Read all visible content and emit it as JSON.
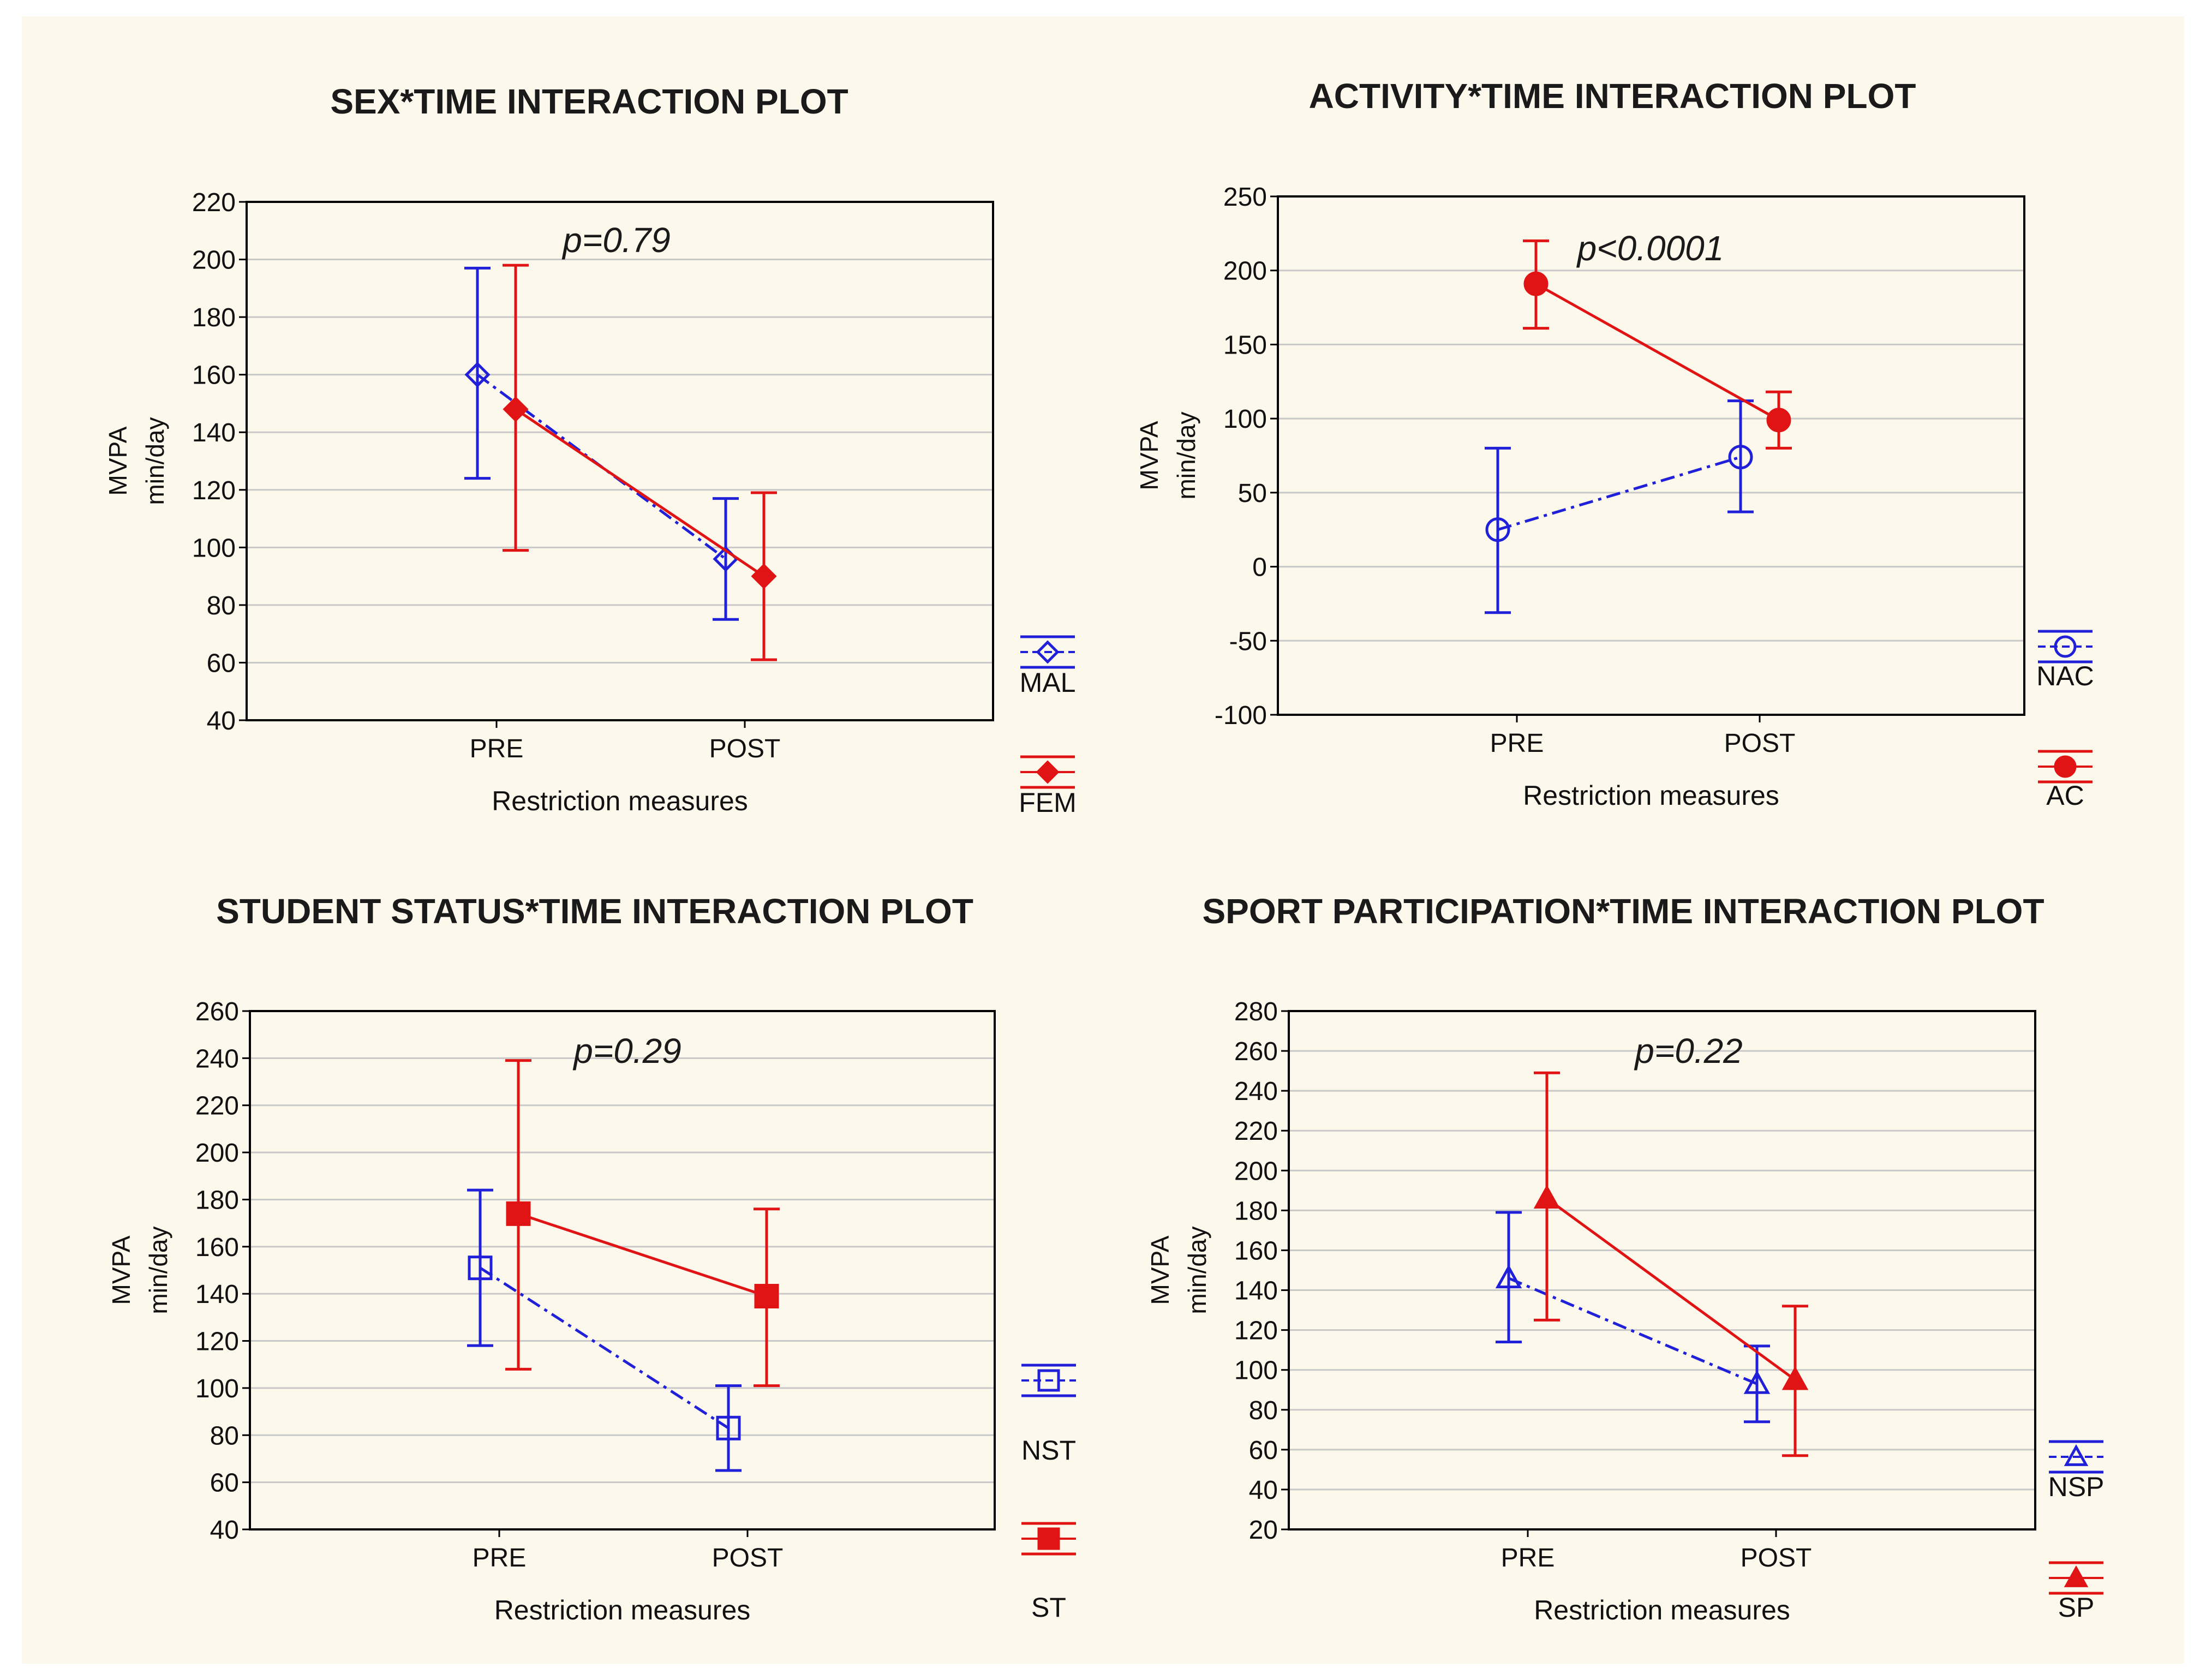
{
  "chart_data": [
    {
      "type": "line",
      "title": "SEX*TIME INTERACTION PLOT",
      "annotation": "p=0.79",
      "xlabel": "Restriction measures",
      "ylabel_lines": [
        "MVPA",
        "min/day"
      ],
      "categories": [
        "PRE",
        "POST"
      ],
      "ylim": [
        40,
        220
      ],
      "yticks": [
        40,
        60,
        80,
        100,
        120,
        140,
        160,
        180,
        200,
        220
      ],
      "grid": true,
      "legend_position": "right",
      "series": [
        {
          "name": "MAL",
          "color": "#2020d8",
          "marker": "diamond-open",
          "dash": true,
          "values": [
            160,
            96
          ],
          "err_low": [
            124,
            75
          ],
          "err_high": [
            197,
            117
          ]
        },
        {
          "name": "FEM",
          "color": "#e01414",
          "marker": "diamond-filled",
          "dash": false,
          "values": [
            148,
            90
          ],
          "err_low": [
            99,
            61
          ],
          "err_high": [
            198,
            119
          ]
        }
      ]
    },
    {
      "type": "line",
      "title": "ACTIVITY*TIME INTERACTION PLOT",
      "annotation": "p<0.0001",
      "xlabel": "Restriction measures",
      "ylabel_lines": [
        "MVPA",
        "min/day"
      ],
      "categories": [
        "PRE",
        "POST"
      ],
      "ylim": [
        -100,
        250
      ],
      "yticks": [
        -100,
        -50,
        0,
        50,
        100,
        150,
        200,
        250
      ],
      "grid": true,
      "legend_position": "right",
      "series": [
        {
          "name": "NAC",
          "color": "#2020d8",
          "marker": "circle-open",
          "dash": true,
          "values": [
            25,
            74
          ],
          "err_low": [
            -31,
            37
          ],
          "err_high": [
            80,
            112
          ]
        },
        {
          "name": "AC",
          "color": "#e01414",
          "marker": "circle-filled",
          "dash": false,
          "values": [
            191,
            99
          ],
          "err_low": [
            161,
            80
          ],
          "err_high": [
            220,
            118
          ]
        }
      ]
    },
    {
      "type": "line",
      "title": "STUDENT STATUS*TIME INTERACTION PLOT",
      "annotation": "p=0.29",
      "xlabel": "Restriction measures",
      "ylabel_lines": [
        "MVPA",
        "min/day"
      ],
      "categories": [
        "PRE",
        "POST"
      ],
      "ylim": [
        40,
        260
      ],
      "yticks": [
        40,
        60,
        80,
        100,
        120,
        140,
        160,
        180,
        200,
        220,
        240,
        260
      ],
      "grid": true,
      "legend_position": "right",
      "series": [
        {
          "name": "NST",
          "color": "#2020d8",
          "marker": "square-open",
          "dash": true,
          "values": [
            151,
            83
          ],
          "err_low": [
            118,
            65
          ],
          "err_high": [
            184,
            101
          ]
        },
        {
          "name": "ST",
          "color": "#e01414",
          "marker": "square-filled",
          "dash": false,
          "values": [
            174,
            139
          ],
          "err_low": [
            108,
            101
          ],
          "err_high": [
            239,
            176
          ]
        }
      ]
    },
    {
      "type": "line",
      "title": "SPORT PARTICIPATION*TIME INTERACTION PLOT",
      "annotation": "p=0.22",
      "xlabel": "Restriction measures",
      "ylabel_lines": [
        "MVPA",
        "min/day"
      ],
      "categories": [
        "PRE",
        "POST"
      ],
      "ylim": [
        20,
        280
      ],
      "yticks": [
        20,
        40,
        60,
        80,
        100,
        120,
        140,
        160,
        180,
        200,
        220,
        240,
        260,
        280
      ],
      "grid": true,
      "legend_position": "right",
      "series": [
        {
          "name": "NSP",
          "color": "#2020d8",
          "marker": "triangle-open",
          "dash": true,
          "values": [
            146,
            93
          ],
          "err_low": [
            114,
            74
          ],
          "err_high": [
            179,
            112
          ]
        },
        {
          "name": "SP",
          "color": "#e01414",
          "marker": "triangle-filled",
          "dash": false,
          "values": [
            186,
            95
          ],
          "err_low": [
            125,
            57
          ],
          "err_high": [
            249,
            132
          ]
        }
      ]
    }
  ]
}
